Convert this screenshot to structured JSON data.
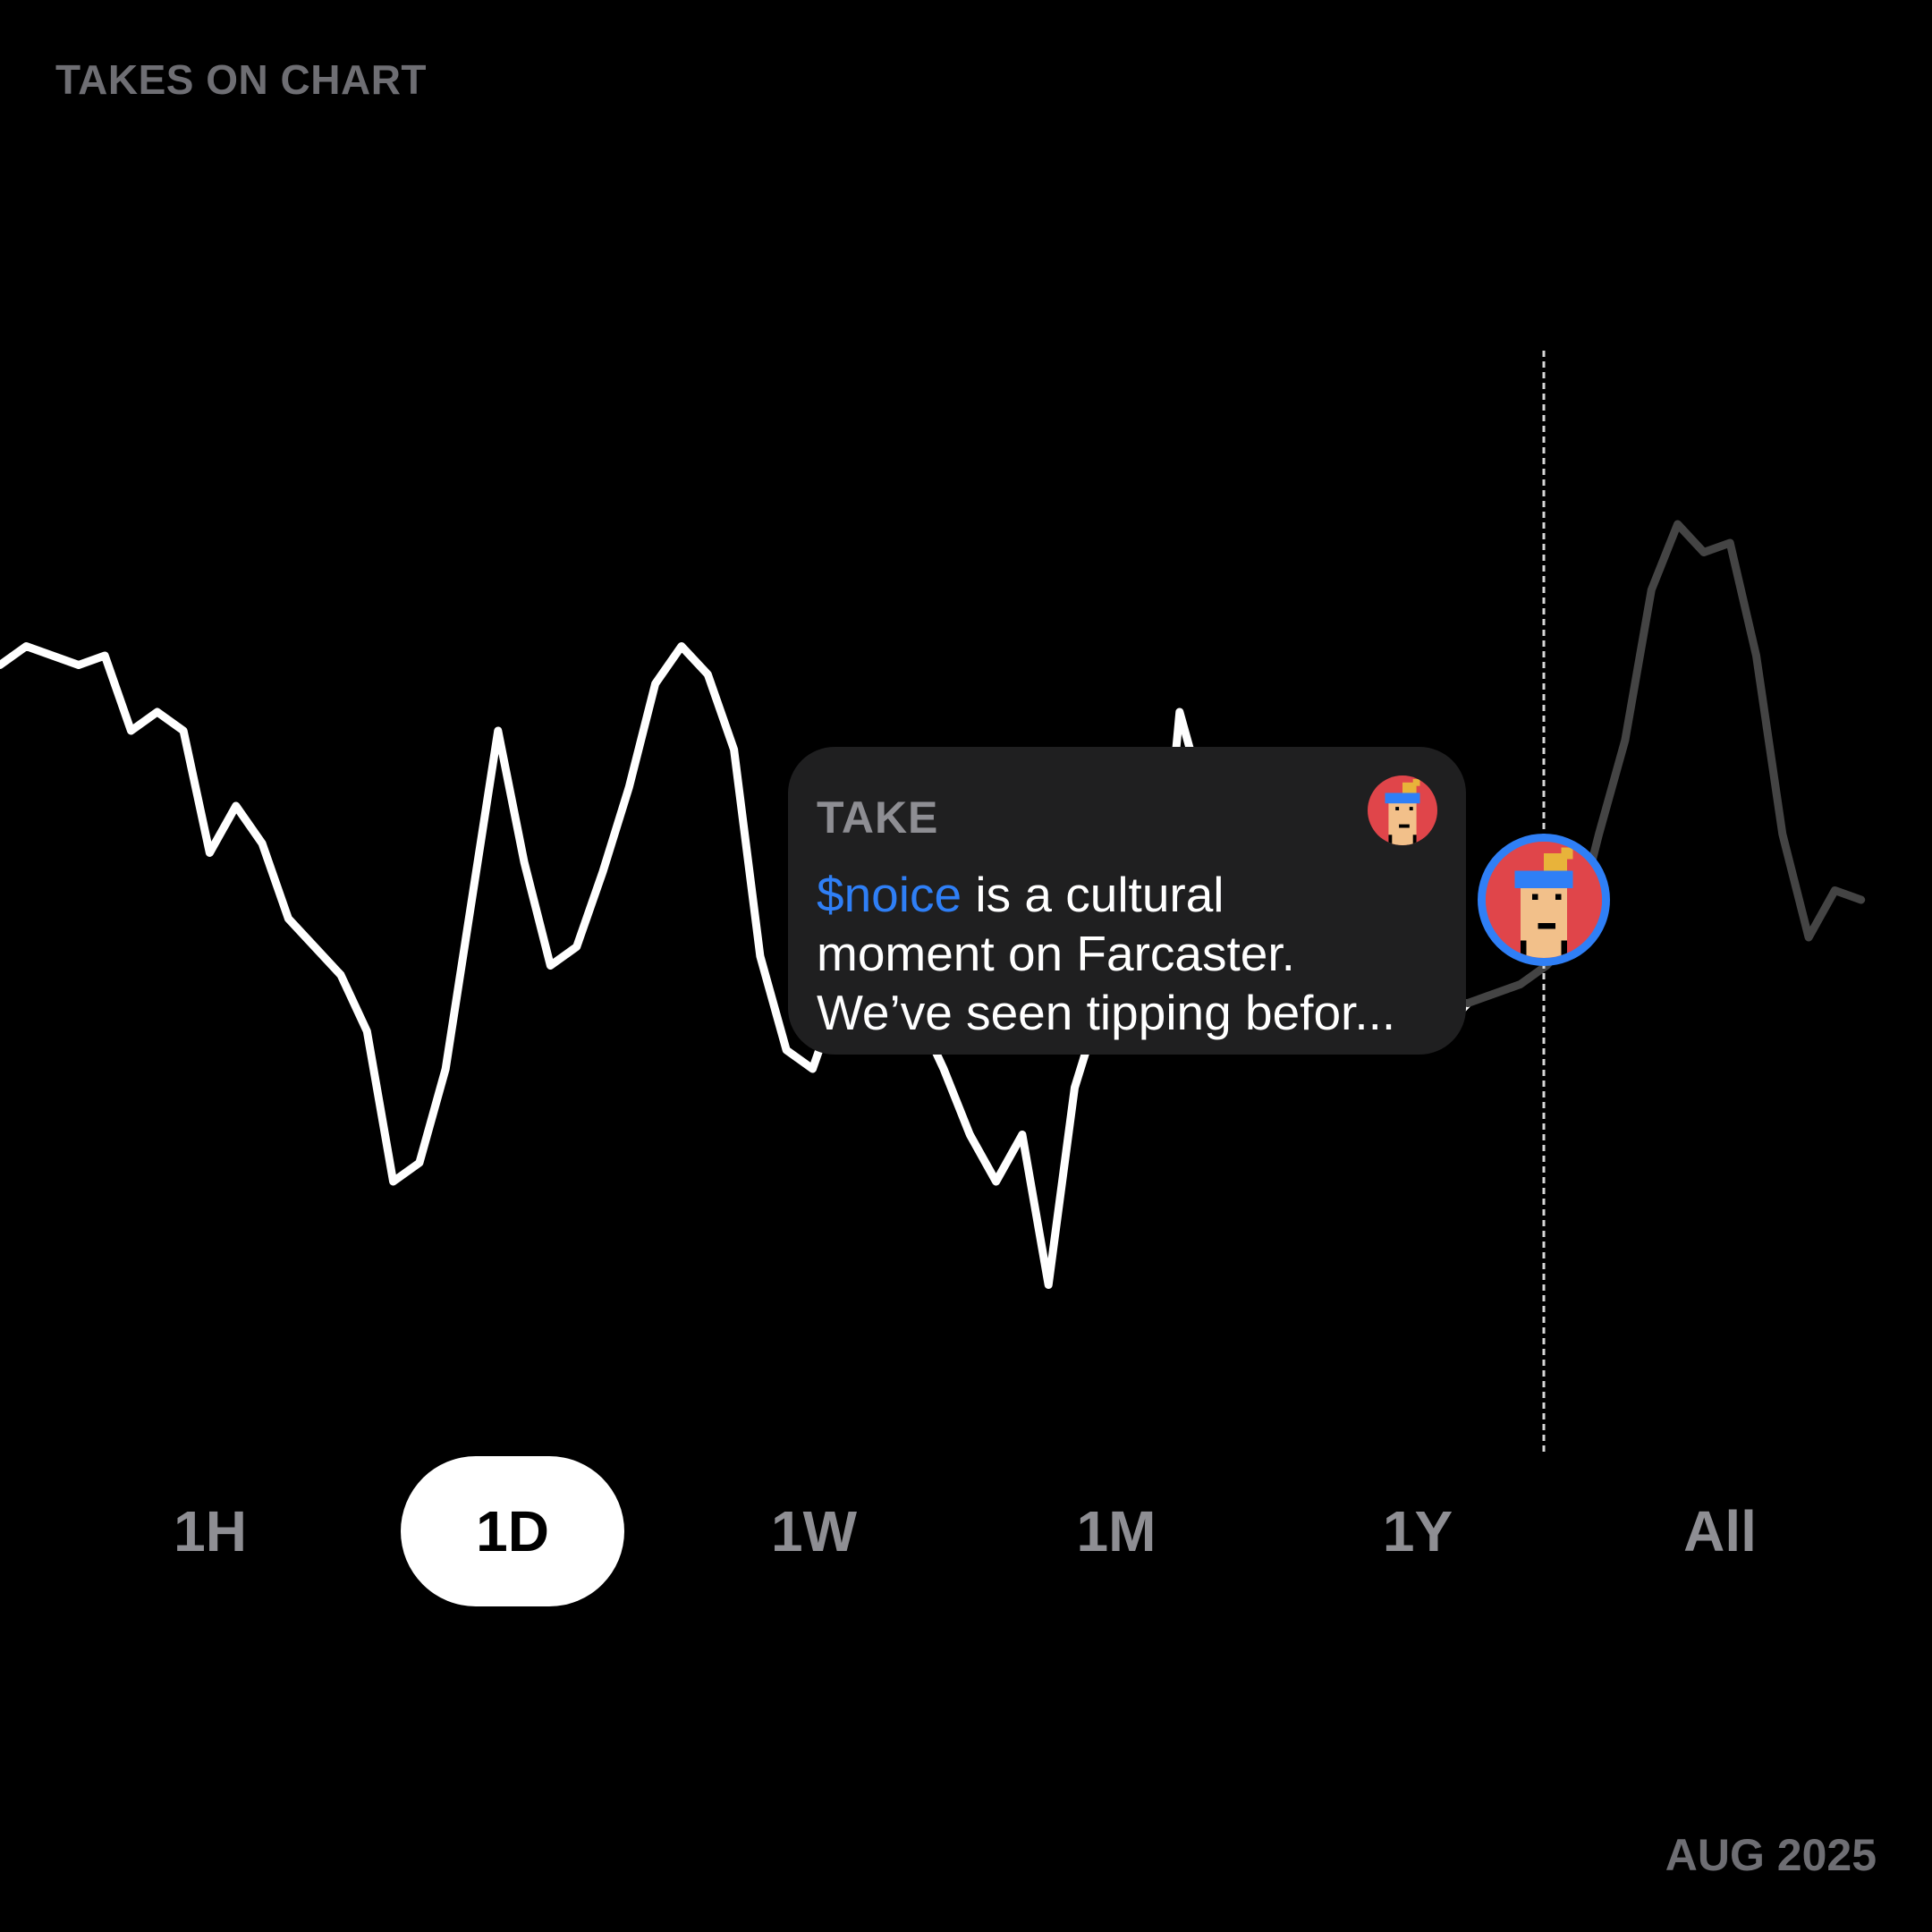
{
  "header": {
    "title": "TAKES ON CHART"
  },
  "chart_data": {
    "type": "line",
    "title": "",
    "xlabel": "",
    "ylabel": "",
    "grid": false,
    "series": [
      {
        "role": "past",
        "color": "#ffffff",
        "values": [
          0.73,
          0.75,
          0.74,
          0.73,
          0.74,
          0.66,
          0.68,
          0.66,
          0.53,
          0.58,
          0.54,
          0.46,
          0.43,
          0.4,
          0.34,
          0.18,
          0.2,
          0.3,
          0.48,
          0.66,
          0.52,
          0.41,
          0.43,
          0.51,
          0.6,
          0.71,
          0.75,
          0.72,
          0.64,
          0.42,
          0.32,
          0.3,
          0.38,
          0.32,
          0.4,
          0.36,
          0.3,
          0.23,
          0.18,
          0.23,
          0.07,
          0.28,
          0.37,
          0.36,
          0.38,
          0.68,
          0.58,
          0.5,
          0.39,
          0.38,
          0.34,
          0.36,
          0.35,
          0.35,
          0.33,
          0.34,
          0.37
        ]
      },
      {
        "role": "future",
        "color": "#444444",
        "values": [
          0.37,
          0.38,
          0.39,
          0.41,
          0.44,
          0.55,
          0.65,
          0.81,
          0.88,
          0.85,
          0.86,
          0.74,
          0.55,
          0.44,
          0.49,
          0.48
        ]
      }
    ],
    "marker": {
      "kind": "take"
    }
  },
  "take": {
    "label": "TAKE",
    "ticker": "$noice",
    "text_line1": " is a cultural",
    "text_line2": "moment on Farcaster.",
    "text_line3": "We’ve seen tipping befor..."
  },
  "avatar": {
    "background_color": "#e0454a",
    "ring_color": "#2f7ff6"
  },
  "time_ranges": {
    "selected": "1D",
    "options": [
      "1H",
      "1D",
      "1W",
      "1M",
      "1Y",
      "All"
    ]
  },
  "footer": {
    "date": "AUG 2025"
  }
}
